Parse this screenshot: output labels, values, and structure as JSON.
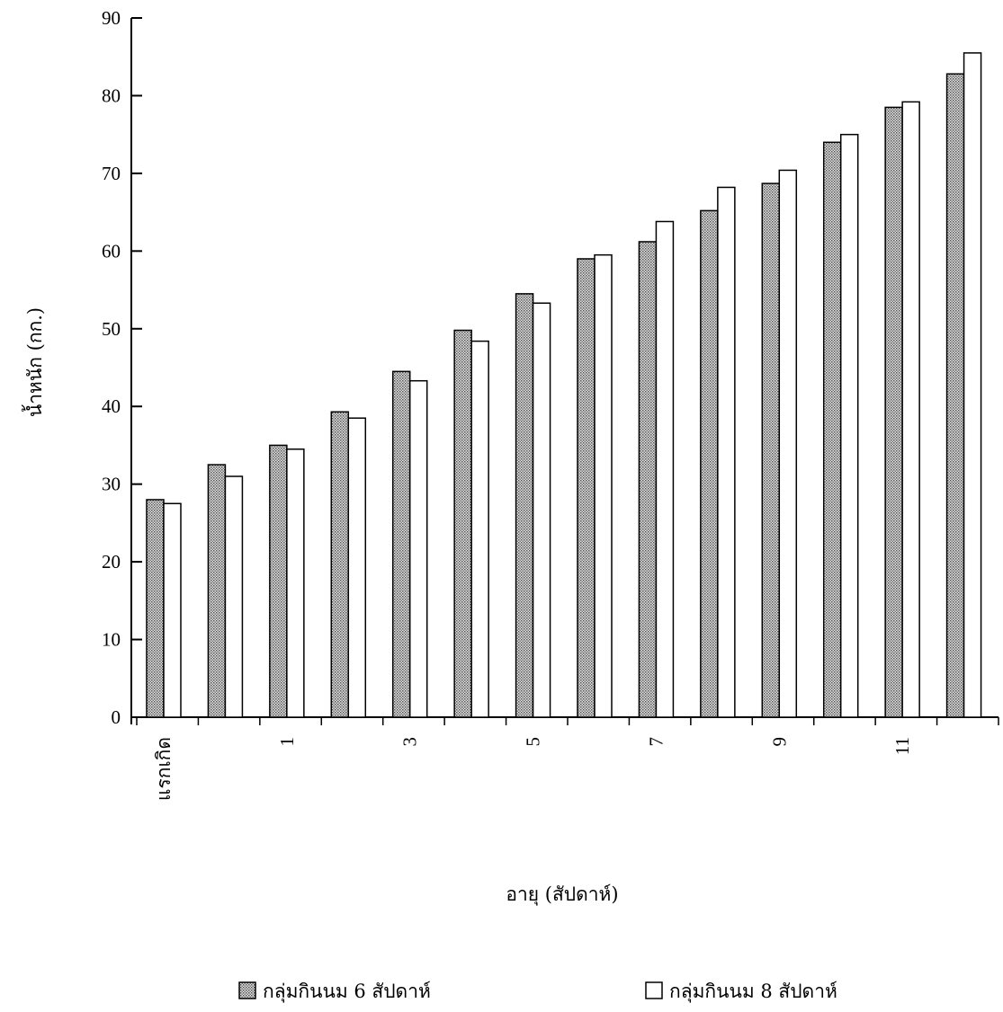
{
  "chart_data": {
    "type": "bar",
    "title": "",
    "xlabel": "อายุ (สัปดาห์)",
    "ylabel": "น้ำหนัก (กก.)",
    "ylim": [
      0,
      90
    ],
    "yticks": [
      0,
      10,
      20,
      30,
      40,
      50,
      60,
      70,
      80,
      90
    ],
    "categories": [
      "แรกเกิด",
      "",
      "1",
      "",
      "3",
      "",
      "5",
      "",
      "7",
      "",
      "9",
      "",
      "11",
      ""
    ],
    "series": [
      {
        "name": "กลุ่มกินนม 6 สัปดาห์",
        "fill": "pattern-dots",
        "color": "#b5b5b5",
        "values": [
          28.0,
          32.5,
          35.0,
          39.3,
          44.5,
          49.8,
          54.5,
          59.0,
          61.2,
          65.2,
          68.7,
          74.0,
          78.5,
          82.8
        ]
      },
      {
        "name": "กลุ่มกินนม 8 สัปดาห์",
        "fill": "white",
        "color": "#ffffff",
        "values": [
          27.5,
          31.0,
          34.5,
          38.5,
          43.3,
          48.4,
          53.3,
          59.5,
          63.8,
          68.2,
          70.4,
          75.0,
          79.2,
          85.5
        ]
      }
    ],
    "legend_position": "bottom",
    "grid": false
  }
}
